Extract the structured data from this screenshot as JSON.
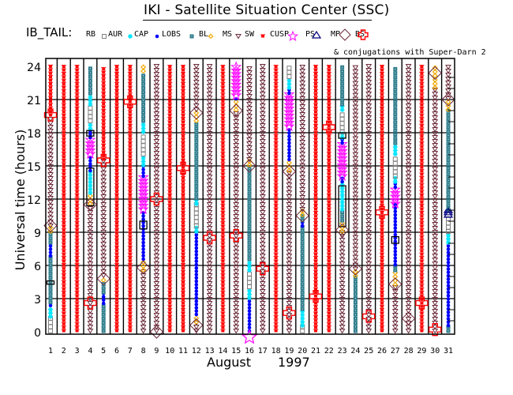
{
  "header": {
    "title": "IKI - Satellite Situation Center (SSC)",
    "legend_label": "IB_TAIL:",
    "conjugation_note": "& conjugations with Super-Darn 2"
  },
  "legend": [
    {
      "key": "RB",
      "label": "RB",
      "symbol": "square-open",
      "color": "#808080"
    },
    {
      "key": "AUR",
      "label": "AUR",
      "symbol": "asterisk",
      "color": "#00e5ff"
    },
    {
      "key": "CAP",
      "label": "CAP",
      "symbol": "dot",
      "color": "#0000ff"
    },
    {
      "key": "LOBS",
      "label": "LOBS",
      "symbol": "square-filled",
      "color": "#2e7d8c"
    },
    {
      "key": "BL",
      "label": "BL",
      "symbol": "sun",
      "color": "#f0a800"
    },
    {
      "key": "MS",
      "label": "MS",
      "symbol": "triangle-down",
      "color": "#6b2a3a"
    },
    {
      "key": "SW",
      "label": "SW",
      "symbol": "crab",
      "color": "#ff0000"
    },
    {
      "key": "CUSP",
      "label": "CUSP",
      "symbol": "star",
      "color": "#ff00ff"
    },
    {
      "key": "PS",
      "label": "PS",
      "symbol": "triangle-up",
      "color": "#000080"
    },
    {
      "key": "MP",
      "label": "MP",
      "symbol": "diamond",
      "color": "#6b2a3a"
    },
    {
      "key": "BS",
      "label": "BS",
      "symbol": "cross",
      "color": "#ff0000"
    }
  ],
  "chart_data": {
    "type": "scatter",
    "title": "IKI - Satellite Situation Center (SSC)",
    "xlabel": "August      1997",
    "xlabel_month": "August",
    "xlabel_year": "1997",
    "ylabel": "Universal time (hours)",
    "xlim": [
      1,
      31
    ],
    "ylim": [
      0,
      24
    ],
    "x_ticks": [
      "1",
      "2",
      "3",
      "4",
      "5",
      "6",
      "7",
      "8",
      "9",
      "10",
      "11",
      "12",
      "13",
      "14",
      "15",
      "16",
      "17",
      "18",
      "19",
      "20",
      "21",
      "22",
      "23",
      "24",
      "25",
      "26",
      "27",
      "28",
      "29",
      "30",
      "31"
    ],
    "y_ticks": [
      "0",
      "3",
      "6",
      "9",
      "12",
      "15",
      "18",
      "21",
      "24"
    ],
    "grid": true,
    "region_colors": {
      "RB": "#808080",
      "AUR": "#00e5ff",
      "CAP": "#0000ff",
      "LOBS": "#2e7d8c",
      "BL": "#f0a800",
      "MS": "#6b2a3a",
      "SW": "#ff0000",
      "CUSP": "#ff00ff"
    },
    "days": [
      {
        "day": 1,
        "segments": [
          [
            "RB",
            0,
            1.3
          ],
          [
            "AUR",
            1.3,
            2.3
          ],
          [
            "CAP",
            2.3,
            2.6
          ],
          [
            "LOBS",
            2.6,
            6.8
          ],
          [
            "CAP",
            6.8,
            8
          ],
          [
            "LOBS",
            8,
            9
          ],
          [
            "BL",
            9,
            9.5
          ],
          [
            "MS",
            9.5,
            19.5
          ],
          [
            "SW",
            19.5,
            24
          ]
        ]
      },
      {
        "day": 2,
        "segments": [
          [
            "SW",
            0,
            24
          ]
        ]
      },
      {
        "day": 3,
        "segments": [
          [
            "SW",
            0,
            24
          ]
        ]
      },
      {
        "day": 4,
        "segments": [
          [
            "MS",
            0,
            11.5
          ],
          [
            "BL",
            11.5,
            12.5
          ],
          [
            "AUR",
            12.5,
            14.5
          ],
          [
            "CAP",
            14.5,
            16
          ],
          [
            "CUSP",
            16,
            17.5
          ],
          [
            "CAP",
            17.5,
            18.3
          ],
          [
            "AUR",
            18.3,
            19
          ],
          [
            "RB",
            19,
            20.5
          ],
          [
            "AUR",
            20.5,
            21.5
          ],
          [
            "LOBS",
            21.5,
            24
          ]
        ]
      },
      {
        "day": 5,
        "segments": [
          [
            "LOBS",
            0,
            2.5
          ],
          [
            "CAP",
            2.5,
            3.5
          ],
          [
            "LOBS",
            3.5,
            4.6
          ],
          [
            "BL",
            4.6,
            5
          ],
          [
            "MS",
            5,
            15.5
          ],
          [
            "SW",
            15.5,
            24
          ]
        ]
      },
      {
        "day": 6,
        "segments": [
          [
            "SW",
            0,
            24
          ]
        ]
      },
      {
        "day": 7,
        "segments": [
          [
            "SW",
            0,
            24
          ]
        ]
      },
      {
        "day": 8,
        "segments": [
          [
            "MS",
            0,
            5.5
          ],
          [
            "BL",
            5.5,
            6.5
          ],
          [
            "CAP",
            6.5,
            11
          ],
          [
            "CUSP",
            11,
            14
          ],
          [
            "CAP",
            14,
            15
          ],
          [
            "AUR",
            15,
            16
          ],
          [
            "RB",
            16,
            18
          ],
          [
            "AUR",
            18,
            19
          ],
          [
            "LOBS",
            19,
            23.5
          ],
          [
            "BL",
            23.5,
            24
          ]
        ]
      },
      {
        "day": 9,
        "segments": [
          [
            "MS",
            0,
            24
          ]
        ]
      },
      {
        "day": 10,
        "segments": [
          [
            "SW",
            0,
            24
          ]
        ]
      },
      {
        "day": 11,
        "segments": [
          [
            "SW",
            0,
            24
          ]
        ]
      },
      {
        "day": 12,
        "segments": [
          [
            "MS",
            0,
            0.8
          ],
          [
            "BL",
            0.8,
            1.5
          ],
          [
            "CAP",
            1.5,
            9
          ],
          [
            "AUR",
            9,
            9.5
          ],
          [
            "RB",
            9.5,
            11.5
          ],
          [
            "AUR",
            11.5,
            12
          ],
          [
            "LOBS",
            12,
            19
          ],
          [
            "BL",
            19,
            20
          ],
          [
            "MS",
            20,
            24
          ]
        ]
      },
      {
        "day": 13,
        "segments": [
          [
            "MS",
            0,
            24
          ]
        ]
      },
      {
        "day": 14,
        "segments": [
          [
            "SW",
            0,
            24
          ]
        ]
      },
      {
        "day": 15,
        "segments": [
          [
            "MS",
            0,
            20
          ],
          [
            "BL",
            20,
            21
          ],
          [
            "CAP",
            21,
            21.3
          ],
          [
            "CUSP",
            21.3,
            24
          ]
        ]
      },
      {
        "day": 16,
        "segments": [
          [
            "CAP",
            0,
            3
          ],
          [
            "AUR",
            3,
            4
          ],
          [
            "RB",
            4,
            5.5
          ],
          [
            "AUR",
            5.5,
            6.5
          ],
          [
            "LOBS",
            6.5,
            15
          ],
          [
            "BL",
            15,
            15.5
          ],
          [
            "MS",
            15.5,
            24
          ]
        ]
      },
      {
        "day": 17,
        "segments": [
          [
            "MS",
            0,
            24
          ]
        ]
      },
      {
        "day": 18,
        "segments": [
          [
            "SW",
            0,
            24
          ]
        ]
      },
      {
        "day": 19,
        "segments": [
          [
            "MS",
            0,
            14.5
          ],
          [
            "BL",
            14.5,
            15.5
          ],
          [
            "CAP",
            15.5,
            18.5
          ],
          [
            "CUSP",
            18.5,
            21.5
          ],
          [
            "CAP",
            21.5,
            22
          ],
          [
            "AUR",
            22,
            23
          ],
          [
            "RB",
            23,
            24
          ]
        ]
      },
      {
        "day": 20,
        "segments": [
          [
            "RB",
            0,
            0.5
          ],
          [
            "AUR",
            0.5,
            2
          ],
          [
            "LOBS",
            2,
            9.5
          ],
          [
            "CAP",
            9.5,
            10
          ],
          [
            "LOBS",
            10,
            10.5
          ],
          [
            "BL",
            10.5,
            11
          ],
          [
            "MS",
            11,
            24
          ]
        ]
      },
      {
        "day": 21,
        "segments": [
          [
            "SW",
            0,
            24
          ]
        ]
      },
      {
        "day": 22,
        "segments": [
          [
            "SW",
            0,
            24
          ]
        ]
      },
      {
        "day": 23,
        "segments": [
          [
            "MS",
            0,
            9
          ],
          [
            "BL",
            9,
            10
          ],
          [
            "LOBS",
            10,
            11
          ],
          [
            "AUR",
            11,
            13.5
          ],
          [
            "CAP",
            13.5,
            14
          ],
          [
            "CUSP",
            14,
            17
          ],
          [
            "CAP",
            17,
            17.5
          ],
          [
            "AUR",
            17.5,
            18
          ],
          [
            "RB",
            18,
            20
          ],
          [
            "AUR",
            20,
            20.5
          ],
          [
            "LOBS",
            20.5,
            24
          ]
        ]
      },
      {
        "day": 24,
        "segments": [
          [
            "LOBS",
            0,
            5
          ],
          [
            "BL",
            5,
            5.6
          ],
          [
            "MS",
            5.6,
            24
          ]
        ]
      },
      {
        "day": 25,
        "segments": [
          [
            "MS",
            0,
            24
          ]
        ]
      },
      {
        "day": 26,
        "segments": [
          [
            "SW",
            0,
            24
          ]
        ]
      },
      {
        "day": 27,
        "segments": [
          [
            "MS",
            0,
            4.2
          ],
          [
            "BL",
            4.2,
            5.5
          ],
          [
            "LOBS",
            5.5,
            6
          ],
          [
            "CAP",
            6,
            11.5
          ],
          [
            "CUSP",
            11.5,
            13
          ],
          [
            "CAP",
            13,
            13.5
          ],
          [
            "AUR",
            13.5,
            14
          ],
          [
            "RB",
            14,
            16
          ],
          [
            "AUR",
            16,
            17
          ],
          [
            "LOBS",
            17,
            24
          ]
        ]
      },
      {
        "day": 28,
        "segments": [
          [
            "MS",
            0,
            24
          ]
        ]
      },
      {
        "day": 29,
        "segments": [
          [
            "SW",
            0,
            24
          ]
        ]
      },
      {
        "day": 30,
        "segments": [
          [
            "MS",
            0,
            22
          ],
          [
            "BL",
            22,
            24
          ]
        ]
      },
      {
        "day": 31,
        "segments": [
          [
            "LOBS",
            0,
            0.5
          ],
          [
            "CAP",
            0.5,
            8
          ],
          [
            "AUR",
            8,
            9
          ],
          [
            "RB",
            9,
            10.5
          ],
          [
            "MP",
            10.5,
            11
          ],
          [
            "LOBS",
            11,
            20
          ],
          [
            "BL",
            20,
            21
          ],
          [
            "MS",
            21,
            24
          ]
        ]
      }
    ],
    "bow_shock_crossings": [
      {
        "day": 1,
        "hour": 9.6
      },
      {
        "day": 4,
        "hour": 11.5
      },
      {
        "day": 5,
        "hour": 4.8
      },
      {
        "day": 8,
        "hour": 5.8
      },
      {
        "day": 9,
        "hour": 0
      },
      {
        "day": 12,
        "hour": 0.6
      },
      {
        "day": 12,
        "hour": 19.8
      },
      {
        "day": 15,
        "hour": 20
      },
      {
        "day": 16,
        "hour": 15
      },
      {
        "day": 19,
        "hour": 14.5
      },
      {
        "day": 20,
        "hour": 10.5
      },
      {
        "day": 23,
        "hour": 9.2
      },
      {
        "day": 24,
        "hour": 5.7
      },
      {
        "day": 27,
        "hour": 4.3
      },
      {
        "day": 28,
        "hour": 1.2
      },
      {
        "day": 30,
        "hour": 23.4
      },
      {
        "day": 31,
        "hour": 21
      }
    ],
    "superdarn_conjugations": [
      {
        "day": 1,
        "hour": 19.6
      },
      {
        "day": 4,
        "hour": 2.6
      },
      {
        "day": 5,
        "hour": 15.5
      },
      {
        "day": 7,
        "hour": 20.8
      },
      {
        "day": 9,
        "hour": 12
      },
      {
        "day": 11,
        "hour": 14.8
      },
      {
        "day": 13,
        "hour": 8.5
      },
      {
        "day": 15,
        "hour": 8.7
      },
      {
        "day": 17,
        "hour": 5.7
      },
      {
        "day": 19,
        "hour": 1.7
      },
      {
        "day": 21,
        "hour": 3.2
      },
      {
        "day": 22,
        "hour": 18.5
      },
      {
        "day": 25,
        "hour": 1.4
      },
      {
        "day": 26,
        "hour": 10.8
      },
      {
        "day": 29,
        "hour": 2.6
      },
      {
        "day": 30,
        "hour": 0.2
      }
    ],
    "magnetopause_crossings": [
      {
        "day": 31,
        "hour": 10.8
      }
    ],
    "cusp_marker": [
      {
        "day": 16,
        "hour": -0.2
      }
    ],
    "boxes": [
      {
        "day": 4,
        "hour_start": 11.4,
        "hour_end": 14.8
      },
      {
        "day": 4,
        "hour_start": 17.7,
        "hour_end": 18.2
      },
      {
        "day": 8,
        "hour_start": 9.3,
        "hour_end": 10
      },
      {
        "day": 23,
        "hour_start": 9.5,
        "hour_end": 13.2
      },
      {
        "day": 23,
        "hour_start": 17.5,
        "hour_end": 18
      },
      {
        "day": 27,
        "hour_start": 8,
        "hour_end": 8.6
      },
      {
        "day": 1,
        "hour_start": 4.3,
        "hour_end": 4.6
      }
    ]
  }
}
